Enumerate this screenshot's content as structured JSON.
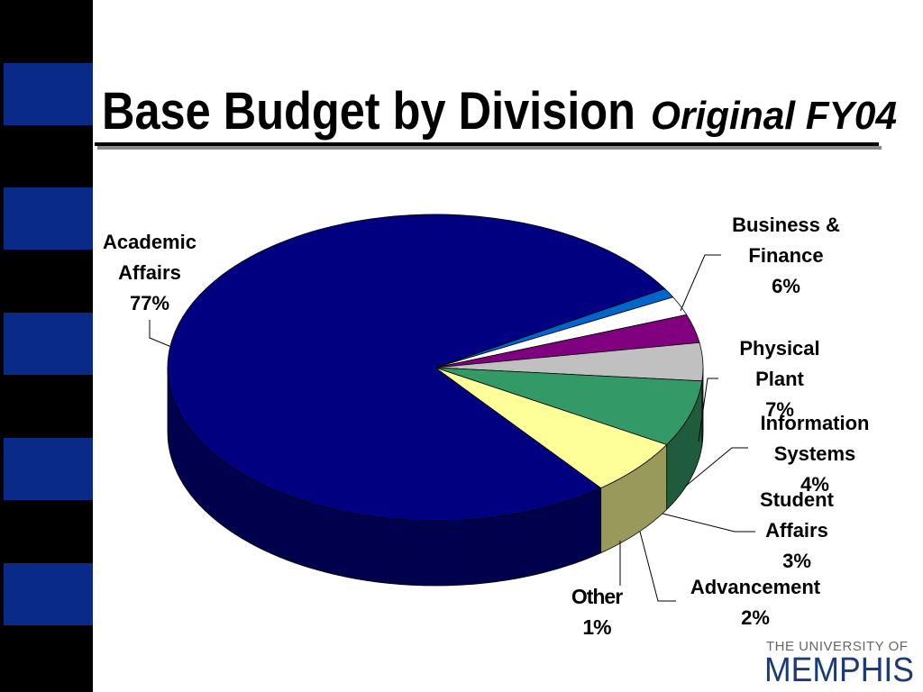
{
  "chart_data": {
    "type": "pie",
    "title": "Base Budget by Division",
    "subtitle": "Original FY04",
    "categories": [
      "Academic Affairs",
      "Other",
      "Advancement",
      "Student Affairs",
      "Information Systems",
      "Physical Plant",
      "Business & Finance"
    ],
    "values": [
      77,
      1,
      2,
      3,
      4,
      7,
      6
    ],
    "value_labels": [
      "77%",
      "1%",
      "2%",
      "3%",
      "4%",
      "7%",
      "6%"
    ],
    "colors": [
      "#000080",
      "#0066cc",
      "#ffffff",
      "#800080",
      "#c0c0c0",
      "#339966",
      "#ffff99"
    ],
    "three_d": true
  },
  "logo": {
    "line1": "THE UNIVERSITY OF",
    "line2": "MEMPHIS"
  }
}
